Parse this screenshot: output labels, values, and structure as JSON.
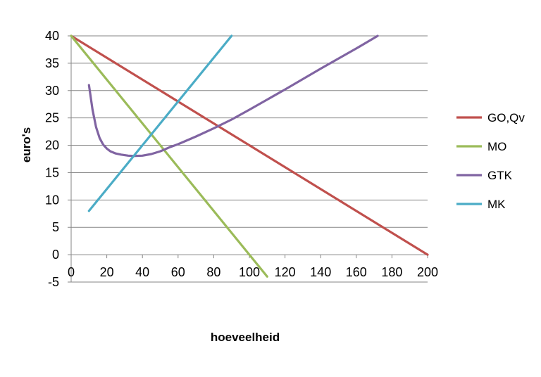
{
  "chart_data": {
    "type": "line",
    "title": "",
    "xlabel": "hoeveelheid",
    "ylabel": "euro's",
    "xlim": [
      0,
      200
    ],
    "ylim": [
      -5,
      40
    ],
    "x_ticks": [
      0,
      20,
      40,
      60,
      80,
      100,
      120,
      140,
      160,
      180,
      200
    ],
    "y_ticks": [
      40,
      35,
      30,
      25,
      20,
      15,
      10,
      5,
      0,
      -5
    ],
    "x_tick_labels": [
      "0",
      "20",
      "40",
      "60",
      "80",
      "100",
      "120",
      "140",
      "160",
      "180",
      "200"
    ],
    "y_tick_labels": [
      "40",
      "35",
      "30",
      "25",
      "20",
      "15",
      "10",
      "5",
      "0",
      "-5"
    ],
    "grid": "horizontal",
    "legend_position": "right",
    "series": [
      {
        "name": "GO,Qv",
        "color": "#c0504d",
        "points": [
          [
            0,
            40
          ],
          [
            200,
            0
          ]
        ]
      },
      {
        "name": "MO",
        "color": "#9bbb59",
        "points": [
          [
            0,
            40
          ],
          [
            110,
            -4
          ]
        ]
      },
      {
        "name": "GTK",
        "color": "#8064a2",
        "points": [
          [
            10,
            31
          ],
          [
            12,
            26.5
          ],
          [
            14,
            23.3
          ],
          [
            16,
            21.3
          ],
          [
            18,
            20.1
          ],
          [
            20,
            19.4
          ],
          [
            22,
            18.9
          ],
          [
            25,
            18.5
          ],
          [
            28,
            18.3
          ],
          [
            32,
            18.1
          ],
          [
            35,
            18.05
          ],
          [
            40,
            18.1
          ],
          [
            45,
            18.4
          ],
          [
            50,
            18.9
          ],
          [
            55,
            19.6
          ],
          [
            60,
            20.2
          ],
          [
            70,
            21.6
          ],
          [
            80,
            23.1
          ],
          [
            90,
            24.7
          ],
          [
            100,
            26.5
          ],
          [
            120,
            30.2
          ],
          [
            140,
            34.0
          ],
          [
            160,
            37.7
          ],
          [
            172,
            40
          ]
        ]
      },
      {
        "name": "MK",
        "color": "#4bacc6",
        "points": [
          [
            10,
            8
          ],
          [
            90,
            40
          ]
        ]
      }
    ]
  }
}
